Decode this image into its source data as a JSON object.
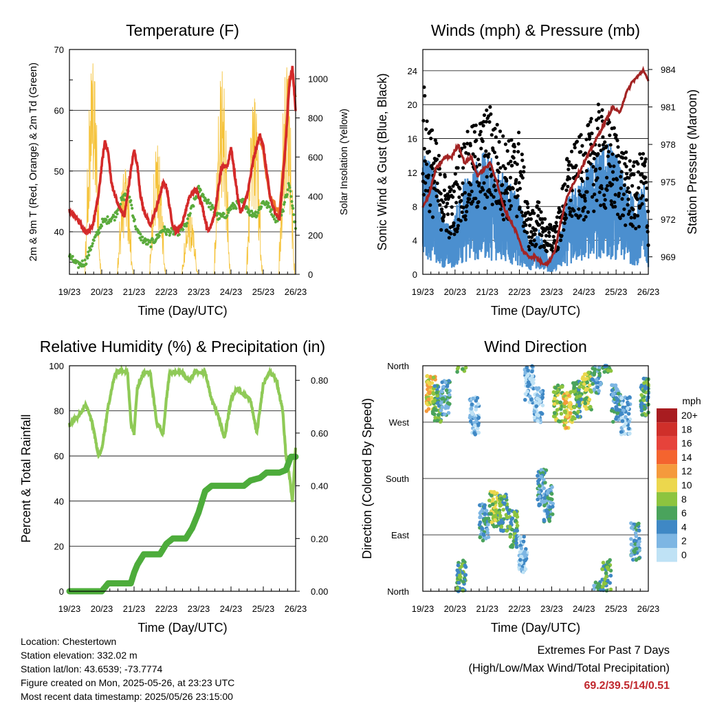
{
  "x_ticks": [
    "19/23",
    "20/23",
    "21/23",
    "22/23",
    "23/23",
    "24/23",
    "25/23",
    "26/23"
  ],
  "chart_data": [
    {
      "type": "line",
      "title": "Temperature (F)",
      "xlabel": "Time (Day/UTC)",
      "ylabel": "2m & 9m T (Red, Orange) & 2m Td (Green)",
      "ylabel_right": "Solar Insolation (Yellow)",
      "ylim": [
        33,
        70
      ],
      "yticks": [
        "40",
        "50",
        "60",
        "70"
      ],
      "ylim_right": [
        0,
        1150
      ],
      "yticks_right": [
        "0",
        "200",
        "400",
        "600",
        "800",
        "1000"
      ],
      "series": [
        {
          "name": "2m T",
          "color": "#d42a2a",
          "x": [
            0,
            0.25,
            0.5,
            0.7,
            0.9,
            1.0,
            1.1,
            1.2,
            1.3,
            1.5,
            1.7,
            1.9,
            2.0,
            2.1,
            2.2,
            2.3,
            2.5,
            2.7,
            2.9,
            3.0,
            3.1,
            3.2,
            3.3,
            3.5,
            3.7,
            3.9,
            4.0,
            4.1,
            4.2,
            4.3,
            4.5,
            4.7,
            4.9,
            5.0,
            5.1,
            5.2,
            5.3,
            5.5,
            5.7,
            5.9,
            6.0,
            6.1,
            6.2,
            6.3,
            6.5,
            6.7,
            6.8,
            6.9,
            7.0
          ],
          "values": [
            43.5,
            42,
            40,
            40.5,
            46,
            51,
            55,
            53,
            48,
            44.5,
            42.5,
            50,
            53.5,
            51,
            46,
            43.5,
            41,
            44,
            48,
            47.5,
            44,
            41,
            40,
            41.5,
            45.5,
            47,
            46,
            44.5,
            42,
            40,
            43,
            50.5,
            51,
            54,
            50,
            46,
            43,
            46,
            52,
            56,
            54,
            50,
            46,
            44,
            42,
            55,
            64,
            67,
            60
          ]
        },
        {
          "name": "9m T",
          "color": "#f07a2a",
          "x": [
            5.9,
            6.0,
            6.1,
            6.2,
            6.3,
            6.5,
            6.7,
            6.8,
            6.9,
            7.0
          ],
          "values": [
            55,
            54,
            49,
            46,
            45,
            43,
            56,
            65,
            66,
            62
          ]
        },
        {
          "name": "2m Td",
          "color": "#5aab3c",
          "x": [
            0,
            0.25,
            0.5,
            0.7,
            0.9,
            1.0,
            1.2,
            1.4,
            1.6,
            1.8,
            1.9,
            2.0,
            2.1,
            2.3,
            2.5,
            2.7,
            2.9,
            3.0,
            3.2,
            3.4,
            3.6,
            3.8,
            4.0,
            4.2,
            4.4,
            4.6,
            4.8,
            5.0,
            5.2,
            5.4,
            5.6,
            5.8,
            6.0,
            6.2,
            6.4,
            6.6,
            6.8,
            6.9,
            7.0
          ],
          "values": [
            36,
            34.5,
            35,
            38,
            40,
            41.5,
            42,
            42.5,
            45,
            46.5,
            45,
            42,
            40,
            38.5,
            38,
            39,
            40.5,
            40,
            40,
            40,
            41,
            44,
            47,
            45.5,
            44,
            42.5,
            42.5,
            44,
            44.5,
            45,
            43,
            43,
            45,
            44,
            42,
            43.5,
            48,
            44,
            41
          ]
        },
        {
          "name": "Solar Insolation",
          "color": "#f5c33b",
          "axis": "right",
          "type": "diurnal",
          "peaks": [
            1080,
            540,
            660,
            320,
            1040,
            900,
            1060
          ]
        }
      ]
    },
    {
      "type": "scatter",
      "title": "Winds (mph) & Pressure (mb)",
      "xlabel": "Time (Day/UTC)",
      "ylabel": "Sonic Wind & Gust (Blue, Black)",
      "ylabel_right": "Station Pressure (Maroon)",
      "ylim": [
        0,
        26.5
      ],
      "yticks": [
        "0",
        "4",
        "8",
        "12",
        "16",
        "20",
        "24"
      ],
      "ylim_right": [
        967.6,
        985.6
      ],
      "yticks_right": [
        "969",
        "972",
        "975",
        "978",
        "981",
        "984"
      ],
      "series": [
        {
          "name": "Wind",
          "color": "#4b8fcf",
          "x": [
            0,
            0.3,
            0.6,
            0.9,
            1.2,
            1.5,
            1.8,
            2.1,
            2.4,
            2.7,
            3.0,
            3.3,
            3.6,
            3.9,
            4.2,
            4.5,
            4.8,
            5.1,
            5.4,
            5.7,
            6.0,
            6.3,
            6.6,
            6.9,
            7.0
          ],
          "values": [
            9,
            7,
            4,
            3,
            6,
            7,
            8,
            8,
            7,
            6,
            5,
            2,
            3,
            1,
            2,
            5,
            6,
            7,
            8,
            9,
            8,
            6,
            5,
            6,
            3
          ]
        },
        {
          "name": "Gust",
          "color": "#000000",
          "x": [
            0,
            0.3,
            0.6,
            0.9,
            1.2,
            1.5,
            1.8,
            2.1,
            2.4,
            2.7,
            3.0,
            3.3,
            3.6,
            3.9,
            4.2,
            4.5,
            4.8,
            5.1,
            5.4,
            5.7,
            6.0,
            6.3,
            6.6,
            6.9,
            7.0
          ],
          "values": [
            16,
            12,
            9,
            7,
            11,
            12,
            13,
            14,
            12,
            11,
            12,
            5,
            6,
            4,
            5,
            10,
            11,
            12,
            14,
            13,
            12,
            10,
            9,
            11,
            6
          ]
        },
        {
          "name": "Pressure",
          "color": "#a32424",
          "axis": "right",
          "x": [
            0,
            0.2,
            0.4,
            0.7,
            0.9,
            1.1,
            1.3,
            1.5,
            1.7,
            1.9,
            2.1,
            2.3,
            2.5,
            2.7,
            2.9,
            3.1,
            3.3,
            3.5,
            3.7,
            3.9,
            4.1,
            4.3,
            4.5,
            4.7,
            4.9,
            5.1,
            5.3,
            5.5,
            5.7,
            5.9,
            6.1,
            6.3,
            6.5,
            6.7,
            6.85,
            7.0
          ],
          "values": [
            973,
            974,
            976,
            977,
            977,
            978,
            976.5,
            977,
            975.5,
            976,
            976.5,
            975,
            973,
            972,
            971,
            969.5,
            969,
            969,
            968.5,
            968.5,
            969.5,
            972,
            974,
            975,
            976,
            977,
            978,
            979,
            980,
            981,
            980.5,
            982,
            983,
            983.5,
            984,
            983
          ]
        }
      ]
    },
    {
      "type": "line",
      "title": "Relative Humidity (%) & Precipitation (in)",
      "xlabel": "Time (Day/UTC)",
      "ylabel": "Percent & Total Rainfall",
      "ylim": [
        0,
        100
      ],
      "yticks": [
        "0",
        "20",
        "40",
        "60",
        "80",
        "100"
      ],
      "ylim_right": [
        0,
        0.8553
      ],
      "yticks_right": [
        "0.00",
        "0.20",
        "0.40",
        "0.60",
        "0.80"
      ],
      "series": [
        {
          "name": "RH",
          "color": "#8fca57",
          "x": [
            0,
            0.3,
            0.5,
            0.7,
            0.9,
            1.0,
            1.2,
            1.4,
            1.6,
            1.8,
            1.9,
            2.0,
            2.1,
            2.3,
            2.5,
            2.7,
            2.9,
            3.0,
            3.1,
            3.3,
            3.5,
            3.7,
            3.9,
            4.0,
            4.2,
            4.4,
            4.6,
            4.8,
            5.0,
            5.2,
            5.4,
            5.6,
            5.8,
            6.0,
            6.2,
            6.4,
            6.6,
            6.7,
            6.8,
            6.9,
            7.0
          ],
          "values": [
            74,
            78,
            83,
            75,
            60,
            63,
            82,
            96,
            98,
            97,
            75,
            70,
            90,
            97,
            97,
            75,
            70,
            85,
            97,
            97,
            97,
            93,
            98,
            97,
            97,
            85,
            78,
            68,
            85,
            90,
            87,
            85,
            70,
            92,
            97,
            94,
            80,
            60,
            52,
            40,
            64
          ]
        },
        {
          "name": "Total Rainfall",
          "color": "#4dac3b",
          "axis": "right",
          "x": [
            0,
            0.9,
            1.0,
            1.2,
            1.4,
            1.9,
            2.0,
            2.1,
            2.3,
            2.5,
            2.8,
            3.0,
            3.2,
            3.6,
            3.8,
            4.0,
            4.2,
            4.4,
            4.8,
            5.2,
            5.4,
            5.6,
            5.9,
            6.1,
            6.5,
            6.7,
            6.85,
            7.0
          ],
          "values": [
            0,
            0,
            0,
            0.03,
            0.03,
            0.03,
            0.07,
            0.1,
            0.14,
            0.14,
            0.14,
            0.18,
            0.2,
            0.2,
            0.24,
            0.3,
            0.38,
            0.4,
            0.4,
            0.4,
            0.4,
            0.42,
            0.43,
            0.45,
            0.45,
            0.46,
            0.51,
            0.51
          ]
        }
      ]
    },
    {
      "type": "scatter",
      "title": "Wind Direction",
      "xlabel": "Time (Day/UTC)",
      "ylabel": "Direction (Colored By Speed)",
      "yticks": [
        "North",
        "East",
        "South",
        "West",
        "North"
      ],
      "ylim": [
        0,
        360
      ],
      "legend": {
        "title": "mph",
        "labels": [
          "20+",
          "18",
          "16",
          "14",
          "12",
          "10",
          "8",
          "6",
          "4",
          "2",
          "0"
        ],
        "colors": [
          "#a81c20",
          "#cf2f2a",
          "#e6433b",
          "#f4642f",
          "#f59a3c",
          "#ecd74d",
          "#8dc43f",
          "#4aa35c",
          "#3f88c5",
          "#7db6e3",
          "#bfe2f5"
        ]
      },
      "clusters": [
        {
          "x": 0.25,
          "dir": 315,
          "speed": 10
        },
        {
          "x": 0.45,
          "dir": 300,
          "speed": 6
        },
        {
          "x": 0.7,
          "dir": 310,
          "speed": 4
        },
        {
          "x": 1.2,
          "dir": 20,
          "speed": 6
        },
        {
          "x": 1.6,
          "dir": 280,
          "speed": 2
        },
        {
          "x": 1.9,
          "dir": 110,
          "speed": 4
        },
        {
          "x": 2.2,
          "dir": 130,
          "speed": 8
        },
        {
          "x": 2.5,
          "dir": 125,
          "speed": 6
        },
        {
          "x": 2.8,
          "dir": 100,
          "speed": 6
        },
        {
          "x": 3.1,
          "dir": 60,
          "speed": 2
        },
        {
          "x": 3.3,
          "dir": 330,
          "speed": 2
        },
        {
          "x": 3.6,
          "dir": 300,
          "speed": 2
        },
        {
          "x": 3.7,
          "dir": 165,
          "speed": 4
        },
        {
          "x": 3.9,
          "dir": 140,
          "speed": 4
        },
        {
          "x": 4.2,
          "dir": 300,
          "speed": 8
        },
        {
          "x": 4.5,
          "dir": 290,
          "speed": 10
        },
        {
          "x": 4.8,
          "dir": 305,
          "speed": 6
        },
        {
          "x": 5.1,
          "dir": 320,
          "speed": 8
        },
        {
          "x": 5.4,
          "dir": 345,
          "speed": 4
        },
        {
          "x": 5.7,
          "dir": 20,
          "speed": 6
        },
        {
          "x": 6.0,
          "dir": 300,
          "speed": 4
        },
        {
          "x": 6.3,
          "dir": 280,
          "speed": 2
        },
        {
          "x": 6.6,
          "dir": 80,
          "speed": 4
        },
        {
          "x": 6.9,
          "dir": 310,
          "speed": 6
        }
      ]
    }
  ],
  "info": {
    "location": "Location: Chestertown",
    "elevation": "Station elevation: 332.02 m",
    "latlon": "Station lat/lon: 43.6539; -73.7774",
    "created": "Figure created on Mon, 2025-05-26, at 23:23 UTC",
    "recent": "Most recent data timestamp: 2025/05/26 23:15:00"
  },
  "extremes": {
    "title": "Extremes For Past 7 Days",
    "subtitle": "(High/Low/Max Wind/Total Precipitation)",
    "values": "69.2/39.5/14/0.51"
  }
}
